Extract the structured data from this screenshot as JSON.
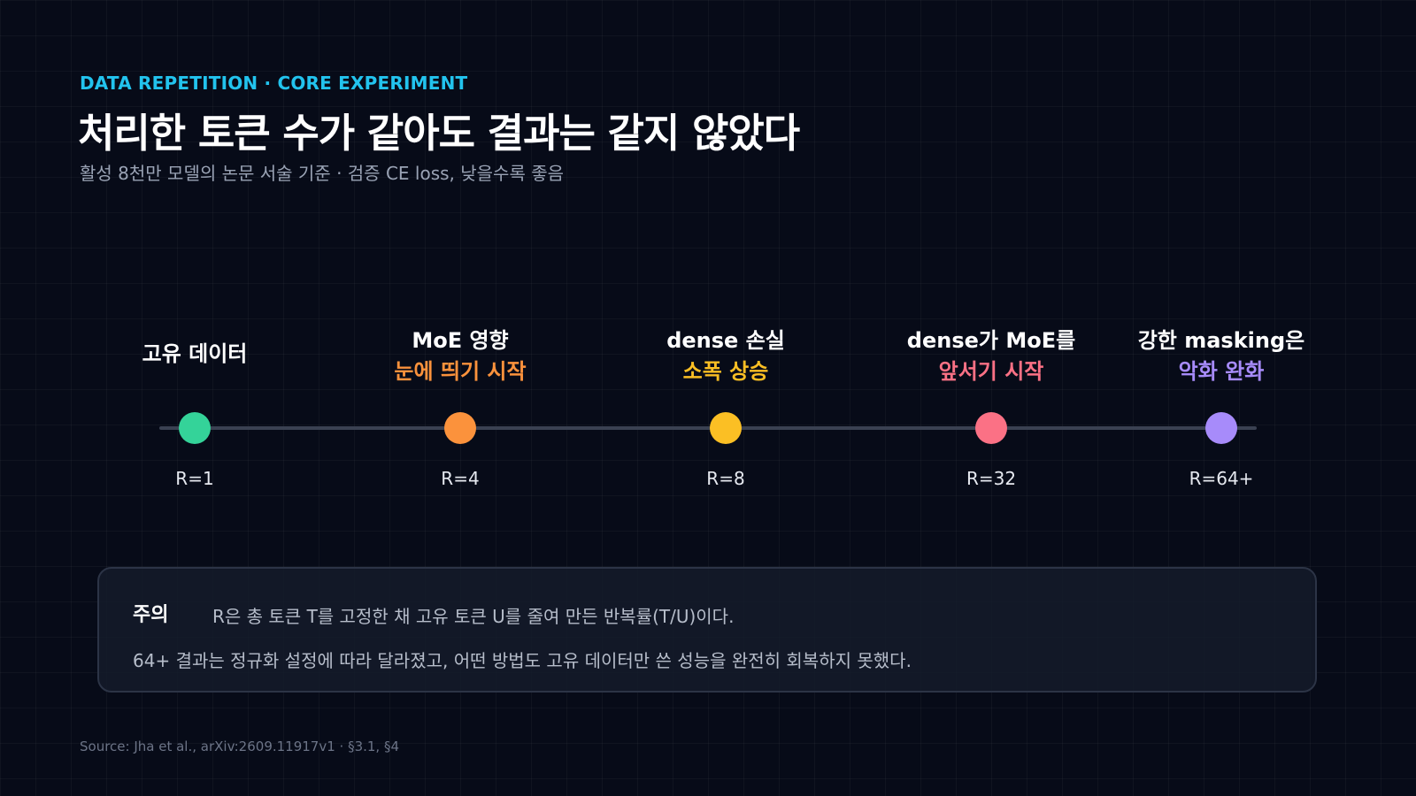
{
  "header": {
    "eyebrow": "DATA REPETITION · CORE EXPERIMENT",
    "title": "처리한 토큰 수가 같아도 결과는 같지 않았다",
    "subtitle": "활성 8천만 모델의 논문 서술 기준 · 검증 CE loss, 낮을수록 좋음"
  },
  "timeline": {
    "nodes": [
      {
        "line1": "고유 데이터",
        "line2": "",
        "r_label": "R=1",
        "color": "#34d399"
      },
      {
        "line1": "MoE 영향",
        "line2": "눈에 띄기 시작",
        "r_label": "R=4",
        "color": "#fb923c"
      },
      {
        "line1": "dense 손실",
        "line2": "소폭 상승",
        "r_label": "R=8",
        "color": "#fbbf24"
      },
      {
        "line1": "dense가 MoE를",
        "line2": "앞서기 시작",
        "r_label": "R=32",
        "color": "#fb7185"
      },
      {
        "line1": "강한 masking은",
        "line2": "악화 완화",
        "r_label": "R=64+",
        "color": "#a78bfa"
      }
    ]
  },
  "note": {
    "heading": "주의",
    "line1": "R은 총 토큰 T를 고정한 채 고유 토큰 U를 줄여 만든 반복률(T/U)이다.",
    "line2": "64+ 결과는 정규화 설정에 따라 달라졌고, 어떤 방법도 고유 데이터만 쓴 성능을 완전히 회복하지 못했다."
  },
  "source": "Source: Jha et al., arXiv:2609.11917v1 · §3.1, §4"
}
